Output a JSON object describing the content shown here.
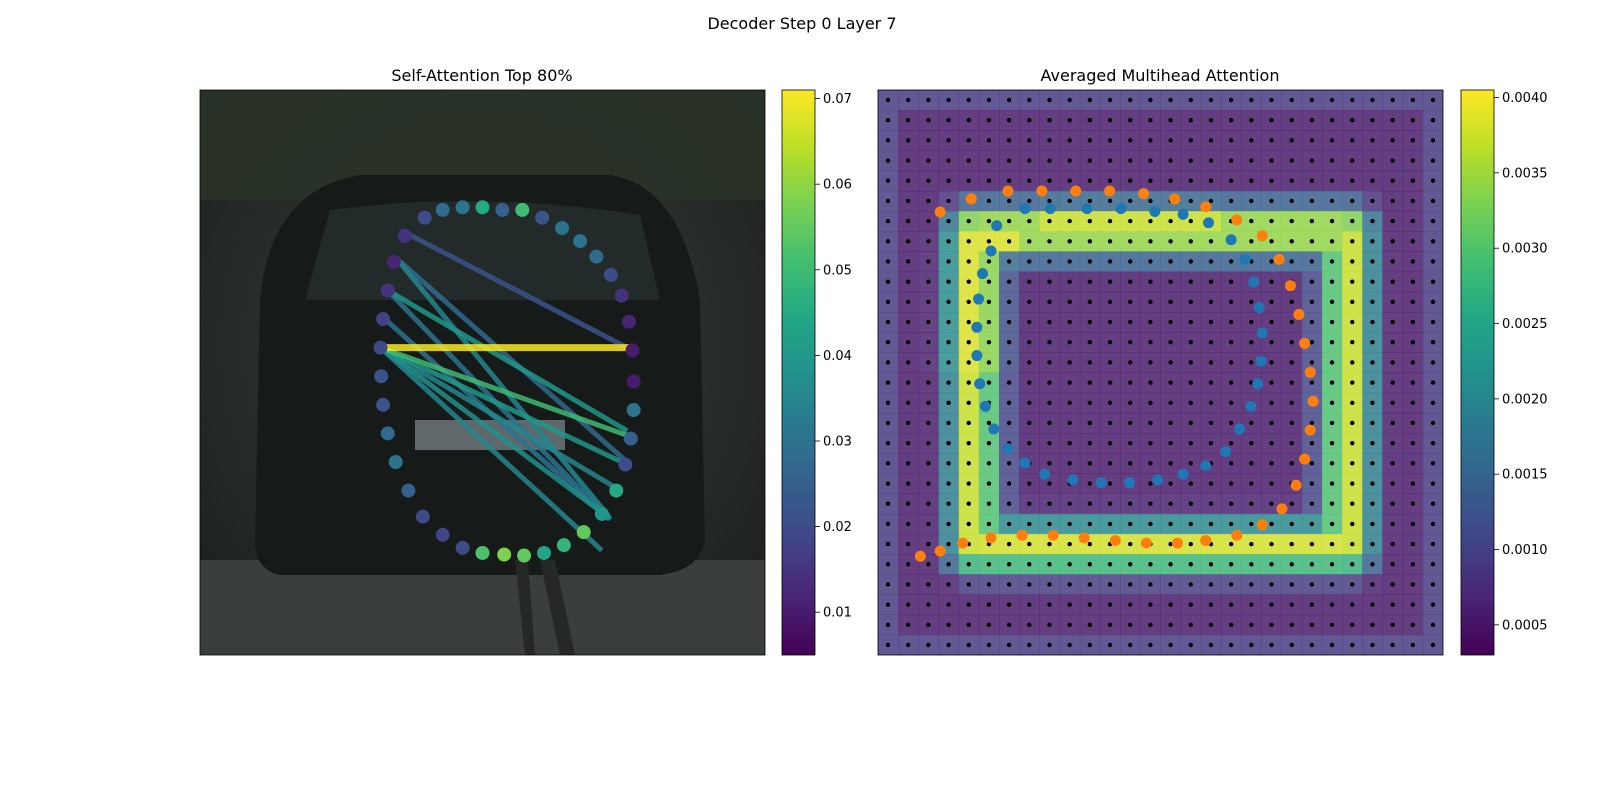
{
  "figure": {
    "title": "Decoder Step 0 Layer 7"
  },
  "chart_data": [
    {
      "type": "scatter",
      "title": "Self-Attention Top 80%",
      "description_colormap": "viridis",
      "colorbar": {
        "range": [
          0.005,
          0.071
        ],
        "ticks": [
          "0.01",
          "0.02",
          "0.03",
          "0.04",
          "0.05",
          "0.06",
          "0.07"
        ],
        "tick_values": [
          0.01,
          0.02,
          0.03,
          0.04,
          0.05,
          0.06,
          0.07
        ]
      },
      "points": [
        {
          "x": 0.0,
          "y": 0.28,
          "v": 0.045
        },
        {
          "x": 0.055,
          "y": 0.285,
          "v": 0.025
        },
        {
          "x": 0.11,
          "y": 0.285,
          "v": 0.05
        },
        {
          "x": 0.165,
          "y": 0.3,
          "v": 0.022
        },
        {
          "x": 0.22,
          "y": 0.32,
          "v": 0.03
        },
        {
          "x": 0.27,
          "y": 0.345,
          "v": 0.03
        },
        {
          "x": 0.315,
          "y": 0.375,
          "v": 0.028
        },
        {
          "x": 0.355,
          "y": 0.41,
          "v": 0.02
        },
        {
          "x": 0.385,
          "y": 0.45,
          "v": 0.015
        },
        {
          "x": 0.405,
          "y": 0.5,
          "v": 0.012
        },
        {
          "x": 0.415,
          "y": 0.555,
          "v": 0.01
        },
        {
          "x": 0.418,
          "y": 0.615,
          "v": 0.01
        },
        {
          "x": 0.418,
          "y": 0.67,
          "v": 0.03
        },
        {
          "x": 0.41,
          "y": 0.725,
          "v": 0.025
        },
        {
          "x": 0.395,
          "y": 0.775,
          "v": 0.02
        },
        {
          "x": 0.37,
          "y": 0.825,
          "v": 0.045
        },
        {
          "x": 0.33,
          "y": 0.87,
          "v": 0.04
        },
        {
          "x": 0.28,
          "y": 0.905,
          "v": 0.055
        },
        {
          "x": 0.225,
          "y": 0.93,
          "v": 0.048
        },
        {
          "x": 0.17,
          "y": 0.945,
          "v": 0.044
        },
        {
          "x": 0.115,
          "y": 0.95,
          "v": 0.055
        },
        {
          "x": 0.06,
          "y": 0.948,
          "v": 0.058
        },
        {
          "x": 0.0,
          "y": 0.945,
          "v": 0.052
        },
        {
          "x": -0.055,
          "y": 0.935,
          "v": 0.02
        },
        {
          "x": -0.11,
          "y": 0.91,
          "v": 0.018
        },
        {
          "x": -0.165,
          "y": 0.875,
          "v": 0.02
        },
        {
          "x": -0.205,
          "y": 0.825,
          "v": 0.025
        },
        {
          "x": -0.24,
          "y": 0.77,
          "v": 0.03
        },
        {
          "x": -0.262,
          "y": 0.715,
          "v": 0.028
        },
        {
          "x": -0.275,
          "y": 0.66,
          "v": 0.022
        },
        {
          "x": -0.28,
          "y": 0.605,
          "v": 0.022
        },
        {
          "x": -0.282,
          "y": 0.55,
          "v": 0.02
        },
        {
          "x": -0.275,
          "y": 0.495,
          "v": 0.018
        },
        {
          "x": -0.262,
          "y": 0.44,
          "v": 0.015
        },
        {
          "x": -0.245,
          "y": 0.385,
          "v": 0.012
        },
        {
          "x": -0.215,
          "y": 0.335,
          "v": 0.015
        },
        {
          "x": -0.16,
          "y": 0.3,
          "v": 0.02
        },
        {
          "x": -0.11,
          "y": 0.285,
          "v": 0.028
        },
        {
          "x": -0.055,
          "y": 0.28,
          "v": 0.03
        }
      ],
      "edges": [
        {
          "from": [
            -0.282,
            0.55
          ],
          "to": [
            0.41,
            0.55
          ],
          "v": 0.071
        },
        {
          "from": [
            -0.282,
            0.55
          ],
          "to": [
            0.405,
            0.72
          ],
          "v": 0.05
        },
        {
          "from": [
            -0.282,
            0.55
          ],
          "to": [
            0.385,
            0.77
          ],
          "v": 0.04
        },
        {
          "from": [
            -0.282,
            0.55
          ],
          "to": [
            0.37,
            0.82
          ],
          "v": 0.035
        },
        {
          "from": [
            -0.282,
            0.55
          ],
          "to": [
            0.355,
            0.88
          ],
          "v": 0.038
        },
        {
          "from": [
            -0.282,
            0.55
          ],
          "to": [
            0.33,
            0.94
          ],
          "v": 0.035
        },
        {
          "from": [
            -0.27,
            0.495
          ],
          "to": [
            0.35,
            0.88
          ],
          "v": 0.03
        },
        {
          "from": [
            -0.262,
            0.44
          ],
          "to": [
            0.35,
            0.88
          ],
          "v": 0.03
        },
        {
          "from": [
            -0.262,
            0.44
          ],
          "to": [
            0.4,
            0.71
          ],
          "v": 0.04
        },
        {
          "from": [
            -0.235,
            0.38
          ],
          "to": [
            0.4,
            0.77
          ],
          "v": 0.028
        },
        {
          "from": [
            -0.21,
            0.33
          ],
          "to": [
            0.4,
            0.55
          ],
          "v": 0.022
        },
        {
          "from": [
            -0.23,
            0.385
          ],
          "to": [
            0.35,
            0.875
          ],
          "v": 0.035
        }
      ]
    },
    {
      "type": "heatmap",
      "title": "Averaged Multihead Attention",
      "description_colormap": "viridis",
      "colorbar": {
        "range": [
          0.0003,
          0.00405
        ],
        "ticks": [
          "0.0005",
          "0.0010",
          "0.0015",
          "0.0020",
          "0.0025",
          "0.0030",
          "0.0035",
          "0.0040"
        ],
        "tick_values": [
          0.0005,
          0.001,
          0.0015,
          0.002,
          0.0025,
          0.003,
          0.0035,
          0.004
        ]
      },
      "grid_points": {
        "cols": 28,
        "rows": 28
      },
      "blue_points": [
        [
          0.09,
          0.24
        ],
        [
          0.14,
          0.21
        ],
        [
          0.185,
          0.21
        ],
        [
          0.25,
          0.21
        ],
        [
          0.31,
          0.21
        ],
        [
          0.37,
          0.215
        ],
        [
          0.42,
          0.22
        ],
        [
          0.465,
          0.235
        ],
        [
          0.505,
          0.265
        ],
        [
          0.53,
          0.3
        ],
        [
          0.545,
          0.34
        ],
        [
          0.555,
          0.385
        ],
        [
          0.56,
          0.43
        ],
        [
          0.558,
          0.48
        ],
        [
          0.552,
          0.52
        ],
        [
          0.54,
          0.56
        ],
        [
          0.52,
          0.6
        ],
        [
          0.495,
          0.64
        ],
        [
          0.46,
          0.665
        ],
        [
          0.42,
          0.68
        ],
        [
          0.375,
          0.69
        ],
        [
          0.325,
          0.695
        ],
        [
          0.275,
          0.695
        ],
        [
          0.225,
          0.69
        ],
        [
          0.175,
          0.68
        ],
        [
          0.14,
          0.66
        ],
        [
          0.11,
          0.635
        ],
        [
          0.085,
          0.6
        ],
        [
          0.07,
          0.56
        ],
        [
          0.06,
          0.52
        ],
        [
          0.055,
          0.47
        ],
        [
          0.055,
          0.42
        ],
        [
          0.058,
          0.37
        ],
        [
          0.065,
          0.325
        ],
        [
          0.08,
          0.285
        ]
      ],
      "orange_points": [
        [
          0.05,
          0.2
        ],
        [
          0.105,
          0.175
        ],
        [
          0.17,
          0.16
        ],
        [
          0.23,
          0.16
        ],
        [
          0.29,
          0.16
        ],
        [
          0.35,
          0.16
        ],
        [
          0.41,
          0.165
        ],
        [
          0.465,
          0.175
        ],
        [
          0.52,
          0.19
        ],
        [
          0.575,
          0.215
        ],
        [
          0.62,
          0.245
        ],
        [
          0.65,
          0.29
        ],
        [
          0.67,
          0.34
        ],
        [
          0.685,
          0.395
        ],
        [
          0.695,
          0.45
        ],
        [
          0.705,
          0.505
        ],
        [
          0.71,
          0.56
        ],
        [
          0.705,
          0.615
        ],
        [
          0.695,
          0.67
        ],
        [
          0.68,
          0.72
        ],
        [
          0.655,
          0.765
        ],
        [
          0.62,
          0.795
        ],
        [
          0.575,
          0.815
        ],
        [
          0.52,
          0.825
        ],
        [
          0.47,
          0.83
        ],
        [
          0.415,
          0.83
        ],
        [
          0.36,
          0.825
        ],
        [
          0.305,
          0.82
        ],
        [
          0.25,
          0.815
        ],
        [
          0.195,
          0.815
        ],
        [
          0.14,
          0.82
        ],
        [
          0.09,
          0.83
        ],
        [
          0.05,
          0.845
        ],
        [
          0.015,
          0.855
        ]
      ]
    }
  ]
}
